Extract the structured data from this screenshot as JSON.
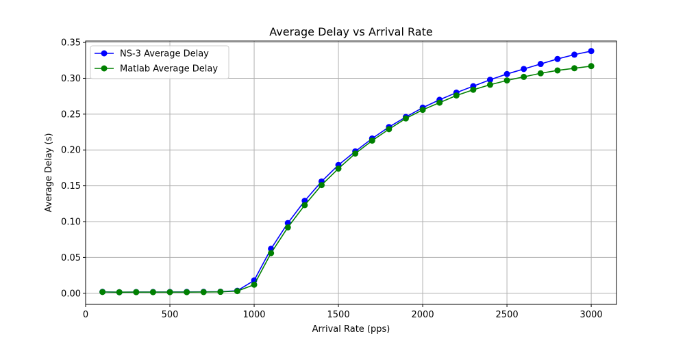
{
  "chart_data": {
    "type": "line",
    "title": "Average Delay vs Arrival Rate",
    "xlabel": "Arrival Rate (pps)",
    "ylabel": "Average Delay (s)",
    "xlim": [
      0,
      3150
    ],
    "ylim": [
      -0.0155,
      0.352
    ],
    "xticks": [
      "0",
      "500",
      "1000",
      "1500",
      "2000",
      "2500",
      "3000"
    ],
    "yticks": [
      "0.00",
      "0.05",
      "0.10",
      "0.15",
      "0.20",
      "0.25",
      "0.30",
      "0.35"
    ],
    "grid": true,
    "legend_position": "top-left",
    "x": [
      100,
      200,
      300,
      400,
      500,
      600,
      700,
      800,
      900,
      1000,
      1100,
      1200,
      1300,
      1400,
      1500,
      1600,
      1700,
      1800,
      1900,
      2000,
      2100,
      2200,
      2300,
      2400,
      2500,
      2600,
      2700,
      2800,
      2900,
      3000
    ],
    "series": [
      {
        "name": "NS-3 Average Delay",
        "color": "#0000ff",
        "values": [
          0.002,
          0.0015,
          0.0017,
          0.0018,
          0.0018,
          0.0019,
          0.002,
          0.0022,
          0.0035,
          0.018,
          0.062,
          0.098,
          0.129,
          0.156,
          0.179,
          0.198,
          0.216,
          0.232,
          0.246,
          0.259,
          0.27,
          0.28,
          0.289,
          0.298,
          0.306,
          0.313,
          0.32,
          0.327,
          0.333,
          0.338
        ]
      },
      {
        "name": "Matlab Average Delay",
        "color": "#008000",
        "values": [
          0.0018,
          0.0015,
          0.0016,
          0.0016,
          0.0016,
          0.0016,
          0.0017,
          0.002,
          0.003,
          0.012,
          0.056,
          0.092,
          0.123,
          0.151,
          0.174,
          0.195,
          0.213,
          0.229,
          0.244,
          0.256,
          0.266,
          0.276,
          0.284,
          0.291,
          0.297,
          0.302,
          0.307,
          0.311,
          0.314,
          0.317
        ]
      }
    ]
  }
}
